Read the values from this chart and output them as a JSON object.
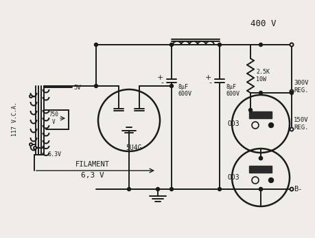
{
  "bg_color": "#f0ede8",
  "line_color": "#1a1a1a",
  "lw": 1.4,
  "labels": {
    "400v": "400 V",
    "117vca": "117 V.C.A.",
    "5v": "5V",
    "750v": "750\nV",
    "5u4g": "5U4G",
    "63v_tap": "6.3V",
    "filament": "FILAMENT",
    "63v_label": "6,3 V",
    "cap1": "8μF\n600V",
    "cap2": "8μF\n600V",
    "resistor": "2.5K\n10W",
    "od3_1": "OD3",
    "od3_2": "OD3",
    "300v": "300V\nREG.",
    "150v": "150V\nREG.",
    "b_minus": "B-"
  }
}
